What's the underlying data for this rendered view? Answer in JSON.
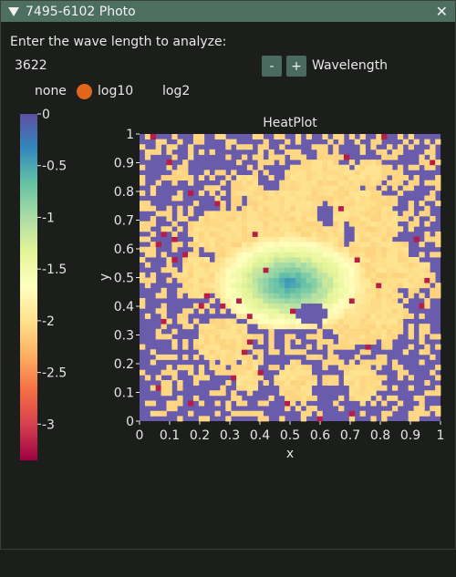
{
  "window": {
    "title": "7495-6102 Photo",
    "close_glyph": "✕"
  },
  "prompt": "Enter the wave length to analyze:",
  "wavelength": {
    "value": "3622",
    "minus_label": "-",
    "plus_label": "+",
    "label": "Wavelength"
  },
  "scale_options": {
    "options": [
      "none",
      "log10",
      "log2"
    ],
    "selected": "log10",
    "selected_color": "#e0661e"
  },
  "colorbar": {
    "ticks": [
      "0",
      "-0.5",
      "-1",
      "-1.5",
      "-2",
      "-2.5",
      "-3"
    ],
    "tick_values": [
      0,
      -0.5,
      -1,
      -1.5,
      -2,
      -2.5,
      -3
    ],
    "range": [
      -3.35,
      0
    ]
  },
  "chart_data": {
    "type": "heatmap",
    "title": "HeatPlot",
    "xlabel": "x",
    "ylabel": "y",
    "xlim": [
      0,
      1
    ],
    "ylim": [
      0,
      1
    ],
    "xticks": [
      "0",
      "0.1",
      "0.2",
      "0.3",
      "0.4",
      "0.5",
      "0.6",
      "0.7",
      "0.8",
      "0.9",
      "1"
    ],
    "yticks": [
      "0",
      "0.1",
      "0.2",
      "0.3",
      "0.4",
      "0.5",
      "0.6",
      "0.7",
      "0.8",
      "0.9",
      "1"
    ],
    "background_color": "#6a5cac",
    "colormap": "spectral",
    "value_range": [
      -3.35,
      0
    ],
    "peak_center": [
      0.5,
      0.48
    ],
    "peak_value": -0.35
  }
}
